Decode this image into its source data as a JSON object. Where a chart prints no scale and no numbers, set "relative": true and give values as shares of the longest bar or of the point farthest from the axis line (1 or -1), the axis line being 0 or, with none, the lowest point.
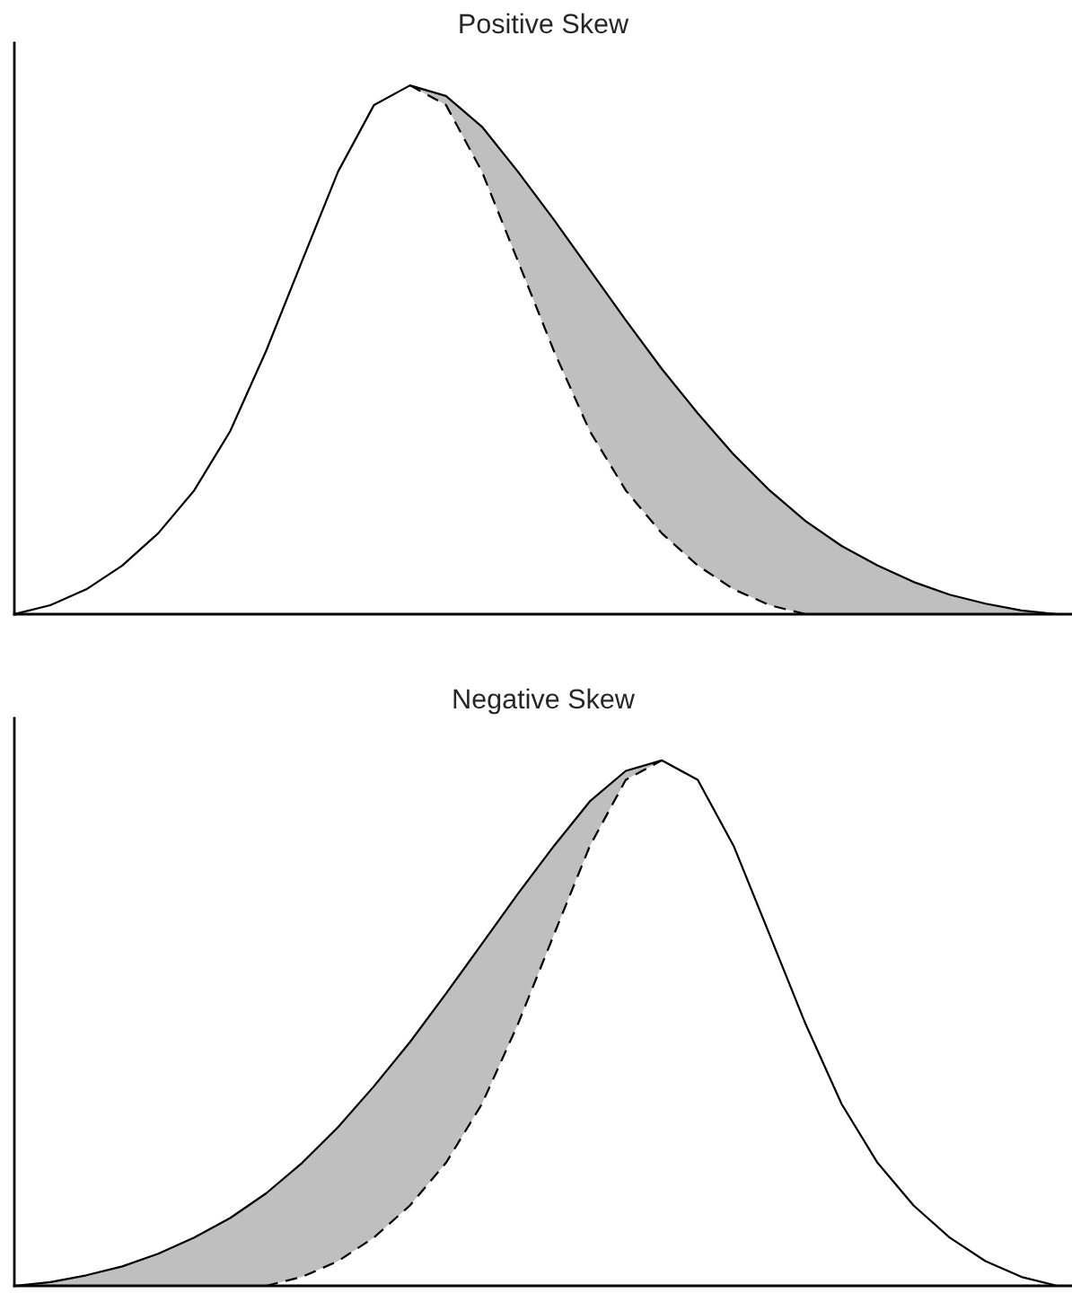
{
  "chart_data": [
    {
      "type": "line",
      "title": "Positive Skew",
      "relative": true,
      "legend": false,
      "tick_labels": false,
      "categories": [
        null,
        null,
        null,
        null,
        null,
        null,
        null,
        null,
        null,
        null,
        null,
        null,
        null,
        null,
        null,
        null,
        null,
        null,
        null,
        null,
        null,
        null,
        null,
        null,
        null,
        null,
        null,
        null,
        null,
        null
      ],
      "series": [
        {
          "color": "#000000",
          "line_style": "solid",
          "values": [
            0,
            0.017,
            0.047,
            0.092,
            0.153,
            0.234,
            0.346,
            0.498,
            0.668,
            0.837,
            0.963,
            1,
            0.98,
            0.922,
            0.837,
            0.746,
            0.651,
            0.556,
            0.464,
            0.38,
            0.302,
            0.234,
            0.176,
            0.129,
            0.092,
            0.061,
            0.037,
            0.02,
            0.007,
            0
          ],
          "lower": [
            null,
            null,
            null,
            null,
            null,
            null,
            null,
            null,
            null,
            null,
            null,
            1,
            0.963,
            0.837,
            0.668,
            0.498,
            0.346,
            0.234,
            0.153,
            0.092,
            0.047,
            0.017,
            0,
            0,
            0,
            0,
            0,
            0,
            0,
            0
          ],
          "upper": [
            null,
            null,
            null,
            null,
            null,
            null,
            null,
            null,
            null,
            null,
            null,
            1,
            0.98,
            0.922,
            0.837,
            0.746,
            0.651,
            0.556,
            0.464,
            0.38,
            0.302,
            0.234,
            0.176,
            0.129,
            0.092,
            0.061,
            0.037,
            0.02,
            0.007,
            0
          ]
        },
        {
          "color": "#000000",
          "line_style": "dashed",
          "values": [
            null,
            null,
            null,
            null,
            null,
            null,
            null,
            null,
            null,
            null,
            null,
            1,
            0.963,
            0.837,
            0.668,
            0.498,
            0.346,
            0.234,
            0.153,
            0.092,
            0.047,
            0.017,
            0,
            null,
            null,
            null,
            null,
            null,
            null,
            null
          ]
        }
      ]
    },
    {
      "type": "line",
      "title": "Negative Skew",
      "relative": true,
      "legend": false,
      "tick_labels": false,
      "categories": [
        null,
        null,
        null,
        null,
        null,
        null,
        null,
        null,
        null,
        null,
        null,
        null,
        null,
        null,
        null,
        null,
        null,
        null,
        null,
        null,
        null,
        null,
        null,
        null,
        null,
        null,
        null,
        null,
        null,
        null
      ],
      "series": [
        {
          "color": "#000000",
          "line_style": "solid",
          "values": [
            0,
            0.007,
            0.02,
            0.037,
            0.061,
            0.092,
            0.129,
            0.176,
            0.234,
            0.302,
            0.38,
            0.464,
            0.556,
            0.651,
            0.746,
            0.837,
            0.922,
            0.98,
            1,
            0.963,
            0.837,
            0.668,
            0.498,
            0.346,
            0.234,
            0.153,
            0.092,
            0.047,
            0.017,
            0
          ],
          "lower": [
            0,
            0,
            0,
            0,
            0,
            0,
            0,
            0,
            0.017,
            0.047,
            0.092,
            0.153,
            0.234,
            0.346,
            0.498,
            0.668,
            0.837,
            0.963,
            1,
            null,
            null,
            null,
            null,
            null,
            null,
            null,
            null,
            null,
            null,
            null
          ],
          "upper": [
            0,
            0.007,
            0.02,
            0.037,
            0.061,
            0.092,
            0.129,
            0.176,
            0.234,
            0.302,
            0.38,
            0.464,
            0.556,
            0.651,
            0.746,
            0.837,
            0.922,
            0.98,
            1,
            null,
            null,
            null,
            null,
            null,
            null,
            null,
            null,
            null,
            null,
            null
          ]
        },
        {
          "color": "#000000",
          "line_style": "dashed",
          "values": [
            null,
            null,
            null,
            null,
            null,
            null,
            null,
            0,
            0.017,
            0.047,
            0.092,
            0.153,
            0.234,
            0.346,
            0.498,
            0.668,
            0.837,
            0.963,
            1,
            null,
            null,
            null,
            null,
            null,
            null,
            null,
            null,
            null,
            null,
            null
          ]
        }
      ]
    }
  ]
}
